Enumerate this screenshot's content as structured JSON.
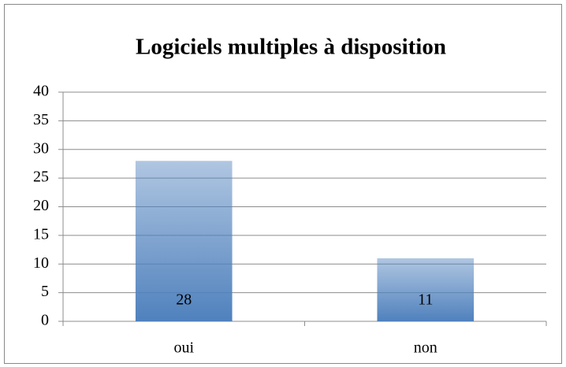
{
  "chart_data": {
    "type": "bar",
    "title": "Logiciels multiples à disposition",
    "categories": [
      "oui",
      "non"
    ],
    "values": [
      28,
      11
    ],
    "color": "#4f81bd",
    "ylim": [
      0,
      40
    ],
    "yticks": [
      0,
      5,
      10,
      15,
      20,
      25,
      30,
      35,
      40
    ],
    "grid": true
  }
}
